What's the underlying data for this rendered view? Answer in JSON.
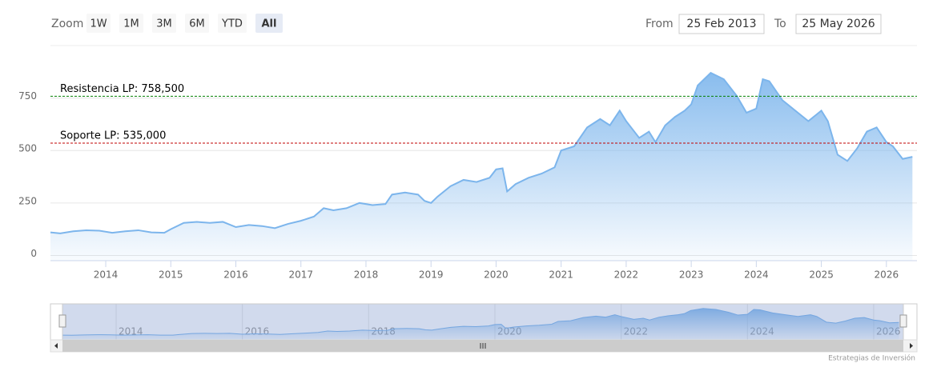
{
  "range_selector": {
    "label": "Zoom",
    "buttons": [
      "1W",
      "1M",
      "3M",
      "6M",
      "YTD",
      "All"
    ],
    "selected": 5,
    "from_label": "From",
    "from": "25 Feb 2013",
    "to_label": "To",
    "to": "25 May 2026"
  },
  "chart_data": {
    "type": "area",
    "color": "#7cb5ec",
    "x": [
      2013.15,
      2013.3,
      2013.5,
      2013.7,
      2013.9,
      2014.1,
      2014.3,
      2014.5,
      2014.7,
      2014.9,
      2015.0,
      2015.2,
      2015.4,
      2015.6,
      2015.8,
      2016.0,
      2016.2,
      2016.4,
      2016.6,
      2016.8,
      2017.0,
      2017.2,
      2017.35,
      2017.5,
      2017.7,
      2017.9,
      2018.1,
      2018.3,
      2018.4,
      2018.6,
      2018.8,
      2018.9,
      2019.0,
      2019.1,
      2019.3,
      2019.5,
      2019.7,
      2019.9,
      2020.0,
      2020.1,
      2020.17,
      2020.3,
      2020.5,
      2020.7,
      2020.9,
      2021.0,
      2021.2,
      2021.4,
      2021.6,
      2021.75,
      2021.9,
      2022.0,
      2022.2,
      2022.35,
      2022.45,
      2022.6,
      2022.75,
      2022.9,
      2023.0,
      2023.1,
      2023.3,
      2023.5,
      2023.7,
      2023.85,
      2024.0,
      2024.1,
      2024.2,
      2024.4,
      2024.6,
      2024.8,
      2025.0,
      2025.1,
      2025.25,
      2025.4,
      2025.55,
      2025.7,
      2025.85,
      2026.0,
      2026.1,
      2026.25,
      2026.4
    ],
    "values": [
      110,
      105,
      115,
      120,
      118,
      108,
      115,
      120,
      110,
      108,
      125,
      155,
      160,
      155,
      160,
      135,
      145,
      140,
      130,
      150,
      165,
      185,
      225,
      215,
      225,
      250,
      240,
      245,
      290,
      300,
      290,
      260,
      250,
      280,
      330,
      360,
      350,
      370,
      410,
      415,
      305,
      340,
      370,
      390,
      420,
      500,
      520,
      610,
      650,
      620,
      690,
      640,
      560,
      590,
      540,
      620,
      660,
      690,
      720,
      810,
      870,
      840,
      760,
      680,
      700,
      840,
      830,
      740,
      690,
      640,
      690,
      640,
      480,
      450,
      510,
      590,
      610,
      540,
      520,
      460,
      470
    ],
    "xlim": [
      2013.15,
      2026.47
    ],
    "xticks": [
      2014,
      2015,
      2016,
      2017,
      2018,
      2019,
      2020,
      2021,
      2022,
      2023,
      2024,
      2025,
      2026
    ],
    "ylim": [
      -25,
      1000
    ],
    "yticks": [
      0,
      250,
      500,
      750
    ],
    "grid": true,
    "plot_lines": [
      {
        "value": 758.5,
        "label": "Resistencia LP: 758,500",
        "color": "#008000"
      },
      {
        "value": 535,
        "label": "Soporte LP: 535,000",
        "color": "#c00000"
      }
    ],
    "navigator_xticks": [
      2014,
      2016,
      2018,
      2020,
      2022,
      2024,
      2026
    ]
  },
  "credit": "Estrategias de Inversión"
}
